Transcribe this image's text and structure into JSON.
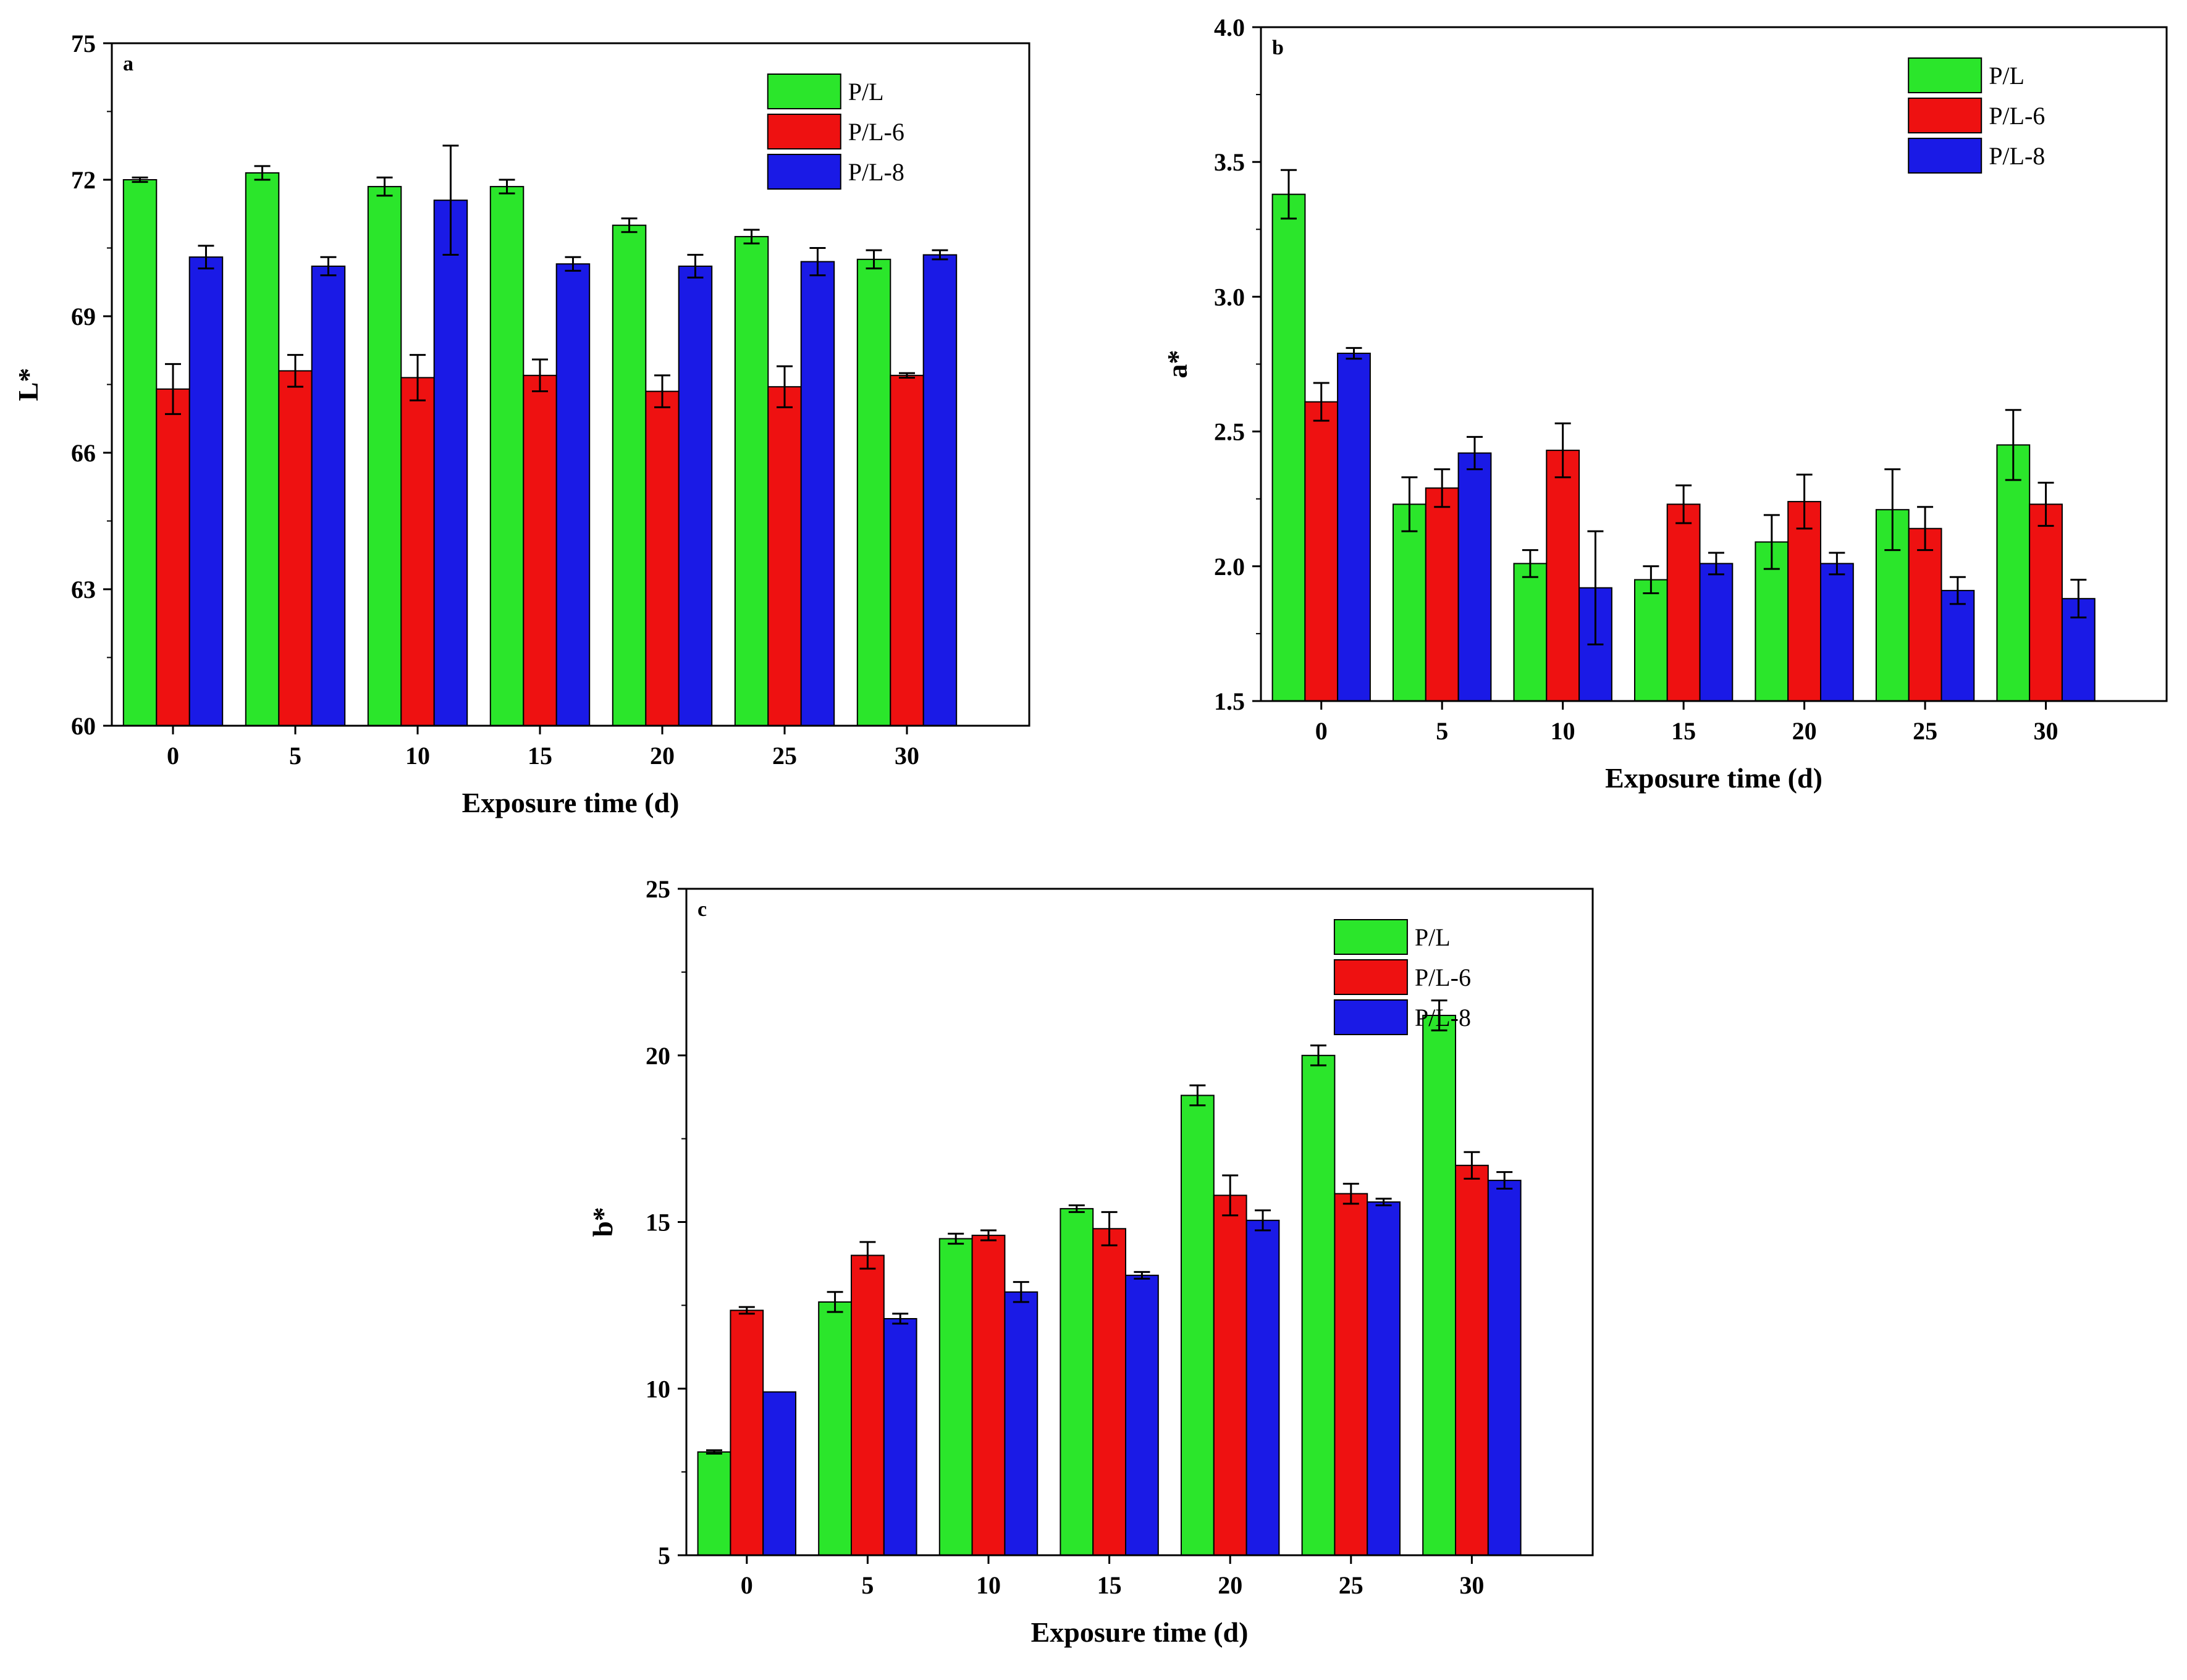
{
  "figure": {
    "legend_position": "top-right",
    "colors": {
      "P/L": "#2be62b",
      "P/L-6": "#ee1111",
      "P/L-8": "#1a1ae6",
      "axis": "#000000",
      "error": "#000000"
    }
  },
  "chart_data": [
    {
      "type": "bar",
      "panel": "a",
      "xlabel": "Exposure time (d)",
      "ylabel": "L*",
      "categories": [
        "0",
        "5",
        "10",
        "15",
        "20",
        "25",
        "30"
      ],
      "ylim": [
        60,
        75
      ],
      "yticks": [
        60,
        63,
        66,
        69,
        72,
        75
      ],
      "ytick_labels": [
        "60",
        "63",
        "66",
        "69",
        "72",
        "75"
      ],
      "legend": [
        "P/L",
        "P/L-6",
        "P/L-8"
      ],
      "series": [
        {
          "name": "P/L",
          "values": [
            72.0,
            72.15,
            71.85,
            71.85,
            71.0,
            70.75,
            70.25
          ],
          "errors": [
            0.05,
            0.15,
            0.2,
            0.15,
            0.15,
            0.15,
            0.2
          ]
        },
        {
          "name": "P/L-6",
          "values": [
            67.4,
            67.8,
            67.65,
            67.7,
            67.35,
            67.45,
            67.7
          ],
          "errors": [
            0.55,
            0.35,
            0.5,
            0.35,
            0.35,
            0.45,
            0.05
          ]
        },
        {
          "name": "P/L-8",
          "values": [
            70.3,
            70.1,
            71.55,
            70.15,
            70.1,
            70.2,
            70.35
          ],
          "errors": [
            0.25,
            0.2,
            1.2,
            0.15,
            0.25,
            0.3,
            0.1
          ]
        }
      ]
    },
    {
      "type": "bar",
      "panel": "b",
      "xlabel": "Exposure time (d)",
      "ylabel": "a*",
      "categories": [
        "0",
        "5",
        "10",
        "15",
        "20",
        "25",
        "30"
      ],
      "ylim": [
        1.5,
        4.0
      ],
      "yticks": [
        1.5,
        2.0,
        2.5,
        3.0,
        3.5,
        4.0
      ],
      "ytick_labels": [
        "1.5",
        "2.0",
        "2.5",
        "3.0",
        "3.5",
        "4.0"
      ],
      "legend": [
        "P/L",
        "P/L-6",
        "P/L-8"
      ],
      "series": [
        {
          "name": "P/L",
          "values": [
            3.38,
            2.23,
            2.01,
            1.95,
            2.09,
            2.21,
            2.45
          ],
          "errors": [
            0.09,
            0.1,
            0.05,
            0.05,
            0.1,
            0.15,
            0.13
          ]
        },
        {
          "name": "P/L-6",
          "values": [
            2.61,
            2.29,
            2.43,
            2.23,
            2.24,
            2.14,
            2.23
          ],
          "errors": [
            0.07,
            0.07,
            0.1,
            0.07,
            0.1,
            0.08,
            0.08
          ]
        },
        {
          "name": "P/L-8",
          "values": [
            2.79,
            2.42,
            1.92,
            2.01,
            2.01,
            1.91,
            1.88
          ],
          "errors": [
            0.02,
            0.06,
            0.21,
            0.04,
            0.04,
            0.05,
            0.07
          ]
        }
      ]
    },
    {
      "type": "bar",
      "panel": "c",
      "xlabel": "Exposure time (d)",
      "ylabel": "b*",
      "categories": [
        "0",
        "5",
        "10",
        "15",
        "20",
        "25",
        "30"
      ],
      "ylim": [
        5,
        25
      ],
      "yticks": [
        5,
        10,
        15,
        20,
        25
      ],
      "ytick_labels": [
        "5",
        "10",
        "15",
        "20",
        "25"
      ],
      "legend": [
        "P/L",
        "P/L-6",
        "P/L-8"
      ],
      "series": [
        {
          "name": "P/L",
          "values": [
            8.1,
            12.6,
            14.5,
            15.4,
            18.8,
            20.0,
            21.2
          ],
          "errors": [
            0.05,
            0.3,
            0.15,
            0.1,
            0.3,
            0.3,
            0.45
          ]
        },
        {
          "name": "P/L-6",
          "values": [
            12.35,
            14.0,
            14.6,
            14.8,
            15.8,
            15.85,
            16.7
          ],
          "errors": [
            0.1,
            0.4,
            0.15,
            0.5,
            0.6,
            0.3,
            0.4
          ]
        },
        {
          "name": "P/L-8",
          "values": [
            9.9,
            12.1,
            12.9,
            13.4,
            15.05,
            15.6,
            16.25
          ],
          "errors": [
            0.0,
            0.15,
            0.3,
            0.1,
            0.3,
            0.1,
            0.25
          ]
        }
      ]
    }
  ]
}
